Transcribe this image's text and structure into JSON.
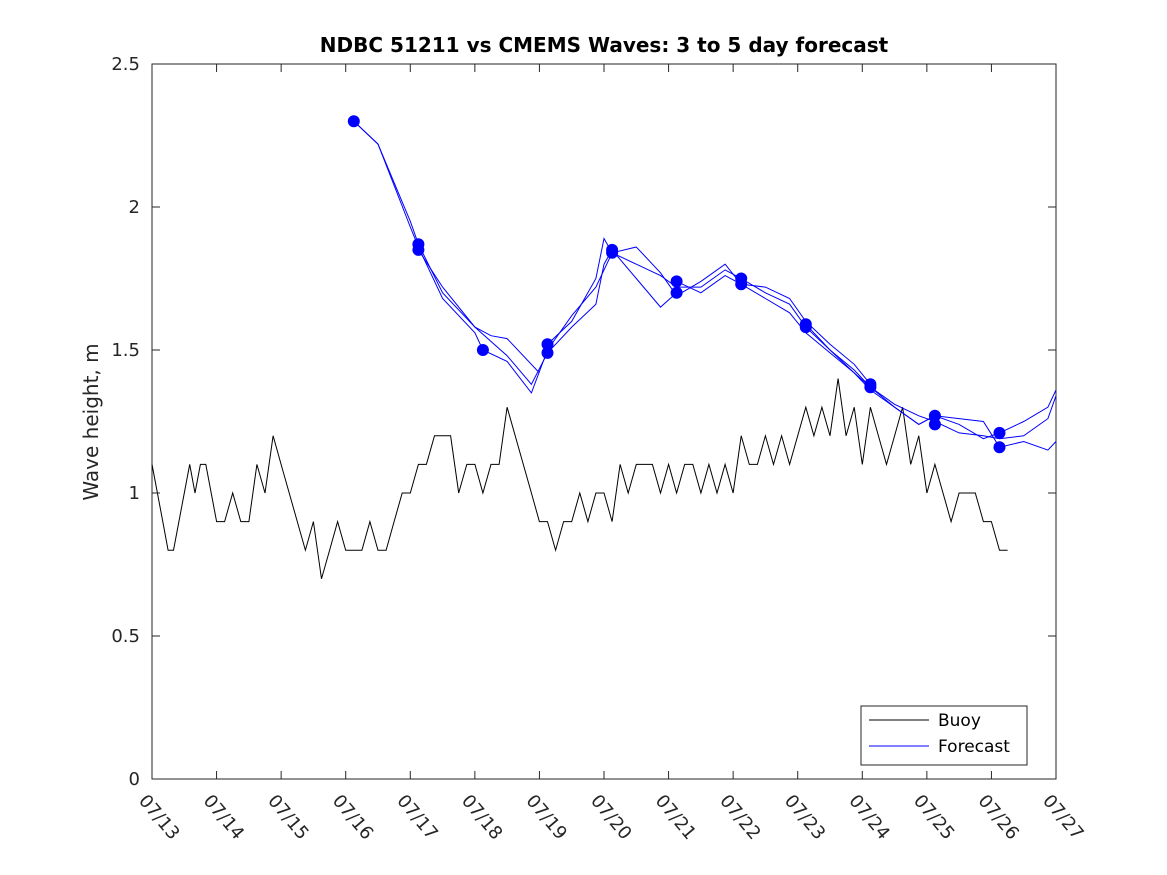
{
  "chart_data": {
    "type": "line",
    "title": "NDBC 51211 vs CMEMS Waves: 3 to 5 day forecast",
    "xlabel": "",
    "ylabel": "Wave height, m",
    "xlim": [
      "07/13",
      "07/27"
    ],
    "ylim": [
      0,
      2.5
    ],
    "grid": false,
    "legend_position": "bottom-right",
    "x_tick_labels": [
      "07/13",
      "07/14",
      "07/15",
      "07/16",
      "07/17",
      "07/18",
      "07/19",
      "07/20",
      "07/21",
      "07/22",
      "07/23",
      "07/24",
      "07/25",
      "07/26",
      "07/27"
    ],
    "y_tick_labels": [
      "0",
      "0.5",
      "1",
      "1.5",
      "2",
      "2.5"
    ],
    "y_ticks": [
      0,
      0.5,
      1,
      1.5,
      2,
      2.5
    ],
    "colors": {
      "buoy": "#000000",
      "forecast": "#0000ff"
    },
    "legend": [
      {
        "label": "Buoy",
        "color": "#000000"
      },
      {
        "label": "Forecast",
        "color": "#0000ff"
      }
    ],
    "series": [
      {
        "name": "Buoy",
        "color": "#000000",
        "x": [
          "07/13 00:00",
          "07/13 02:00",
          "07/13 04:00",
          "07/13 06:00",
          "07/13 08:00",
          "07/13 10:00",
          "07/13 12:00",
          "07/13 14:00",
          "07/13 16:00",
          "07/13 18:00",
          "07/13 20:00",
          "07/13 22:00",
          "07/14 00:00",
          "07/14 03:00",
          "07/14 06:00",
          "07/14 09:00",
          "07/14 12:00",
          "07/14 15:00",
          "07/14 18:00",
          "07/14 21:00",
          "07/15 00:00",
          "07/15 03:00",
          "07/15 06:00",
          "07/15 09:00",
          "07/15 12:00",
          "07/15 15:00",
          "07/15 18:00",
          "07/15 21:00",
          "07/16 00:00",
          "07/16 03:00",
          "07/16 06:00",
          "07/16 09:00",
          "07/16 12:00",
          "07/16 15:00",
          "07/16 18:00",
          "07/16 21:00",
          "07/17 00:00",
          "07/17 03:00",
          "07/17 06:00",
          "07/17 09:00",
          "07/17 12:00",
          "07/17 15:00",
          "07/17 18:00",
          "07/17 21:00",
          "07/18 00:00",
          "07/18 03:00",
          "07/18 06:00",
          "07/18 09:00",
          "07/18 12:00",
          "07/18 15:00",
          "07/18 18:00",
          "07/18 21:00",
          "07/19 00:00",
          "07/19 03:00",
          "07/19 06:00",
          "07/19 09:00",
          "07/19 12:00",
          "07/19 15:00",
          "07/19 18:00",
          "07/19 21:00",
          "07/20 00:00",
          "07/20 03:00",
          "07/20 06:00",
          "07/20 09:00",
          "07/20 12:00",
          "07/20 15:00",
          "07/20 18:00",
          "07/20 21:00",
          "07/21 00:00",
          "07/21 03:00",
          "07/21 06:00",
          "07/21 09:00",
          "07/21 12:00",
          "07/21 15:00",
          "07/21 18:00",
          "07/21 21:00",
          "07/22 00:00",
          "07/22 03:00",
          "07/22 06:00",
          "07/22 09:00",
          "07/22 12:00",
          "07/22 15:00",
          "07/22 18:00",
          "07/22 21:00",
          "07/23 00:00",
          "07/23 03:00",
          "07/23 06:00",
          "07/23 09:00",
          "07/23 12:00",
          "07/23 15:00",
          "07/23 18:00",
          "07/23 21:00",
          "07/24 00:00",
          "07/24 03:00",
          "07/24 06:00",
          "07/24 09:00",
          "07/24 12:00",
          "07/24 15:00",
          "07/24 18:00",
          "07/24 21:00",
          "07/25 00:00",
          "07/25 03:00",
          "07/25 06:00",
          "07/25 09:00",
          "07/25 12:00",
          "07/25 15:00",
          "07/25 18:00",
          "07/25 21:00",
          "07/26 00:00",
          "07/26 03:00",
          "07/26 06:00"
        ],
        "values": [
          1.1,
          1.0,
          0.9,
          0.8,
          0.8,
          0.9,
          1.0,
          1.1,
          1.0,
          1.1,
          1.1,
          1.0,
          0.9,
          0.9,
          1.0,
          0.9,
          0.9,
          1.1,
          1.0,
          1.2,
          1.1,
          1.0,
          0.9,
          0.8,
          0.9,
          0.7,
          0.8,
          0.9,
          0.8,
          0.8,
          0.8,
          0.9,
          0.8,
          0.8,
          0.9,
          1.0,
          1.0,
          1.1,
          1.1,
          1.2,
          1.2,
          1.2,
          1.0,
          1.1,
          1.1,
          1.0,
          1.1,
          1.1,
          1.3,
          1.2,
          1.1,
          1.0,
          0.9,
          0.9,
          0.8,
          0.9,
          0.9,
          1.0,
          0.9,
          1.0,
          1.0,
          0.9,
          1.1,
          1.0,
          1.1,
          1.1,
          1.1,
          1.0,
          1.1,
          1.0,
          1.1,
          1.1,
          1.0,
          1.1,
          1.0,
          1.1,
          1.0,
          1.2,
          1.1,
          1.1,
          1.2,
          1.1,
          1.2,
          1.1,
          1.2,
          1.3,
          1.2,
          1.3,
          1.2,
          1.4,
          1.2,
          1.3,
          1.1,
          1.3,
          1.2,
          1.1,
          1.2,
          1.3,
          1.1,
          1.2,
          1.0,
          1.1,
          1.0,
          0.9,
          1.0,
          1.0,
          1.0,
          0.9,
          0.9,
          0.8,
          0.8
        ]
      },
      {
        "name": "Forecast",
        "color": "#0000ff",
        "x": [
          "07/16 03:00",
          "07/16 12:00",
          "07/17 00:00",
          "07/17 03:00",
          "07/17 12:00",
          "07/18 00:00",
          "07/18 03:00",
          "07/18 12:00",
          "07/18 21:00",
          "07/19 03:00",
          "07/19 12:00",
          "07/19 21:00",
          "07/20 03:00",
          "07/20 12:00",
          "07/20 21:00",
          "07/21 03:00",
          "07/21 12:00",
          "07/21 21:00",
          "07/22 03:00",
          "07/22 12:00",
          "07/22 21:00",
          "07/23 03:00",
          "07/23 12:00",
          "07/23 21:00",
          "07/24 03:00",
          "07/24 12:00",
          "07/24 21:00",
          "07/25 03:00",
          "07/25 12:00",
          "07/25 21:00",
          "07/26 03:00",
          "07/26 12:00",
          "07/26 21:00",
          "07/27 00:00"
        ],
        "values": [
          2.3,
          2.22,
          1.93,
          1.86,
          1.68,
          1.56,
          1.5,
          1.46,
          1.35,
          1.5,
          1.62,
          1.72,
          1.84,
          1.8,
          1.76,
          1.72,
          1.72,
          1.78,
          1.75,
          1.7,
          1.66,
          1.58,
          1.5,
          1.43,
          1.37,
          1.31,
          1.27,
          1.25,
          1.21,
          1.2,
          1.19,
          1.2,
          1.26,
          1.34
        ]
      },
      {
        "name": "",
        "color": "#0000ff",
        "x": [
          "07/16 03:00",
          "07/16 12:00",
          "07/17 00:00",
          "07/17 03:00",
          "07/17 12:00",
          "07/18 00:00",
          "07/18 06:00",
          "07/18 12:00",
          "07/19 00:00"
        ],
        "values": [
          2.3,
          2.22,
          1.95,
          1.87,
          1.7,
          1.58,
          1.55,
          1.54,
          1.42
        ]
      },
      {
        "name": "",
        "color": "#0000ff",
        "x": [
          "07/17 03:00",
          "07/17 12:00",
          "07/18 00:00",
          "07/18 12:00",
          "07/18 21:00",
          "07/19 03:00",
          "07/19 12:00",
          "07/19 21:00",
          "07/20 00:00",
          "07/20 03:00",
          "07/20 12:00",
          "07/20 21:00",
          "07/21 03:00"
        ],
        "values": [
          1.85,
          1.72,
          1.58,
          1.48,
          1.38,
          1.49,
          1.58,
          1.66,
          1.8,
          1.85,
          1.75,
          1.65,
          1.7
        ]
      },
      {
        "name": "",
        "color": "#0000ff",
        "x": [
          "07/19 03:00",
          "07/19 12:00",
          "07/19 21:00",
          "07/20 00:00",
          "07/20 03:00",
          "07/20 12:00",
          "07/20 21:00",
          "07/21 03:00",
          "07/21 12:00",
          "07/21 21:00",
          "07/22 03:00",
          "07/22 12:00",
          "07/22 21:00",
          "07/23 03:00",
          "07/23 12:00",
          "07/23 21:00",
          "07/24 03:00"
        ],
        "values": [
          1.52,
          1.6,
          1.75,
          1.89,
          1.84,
          1.86,
          1.77,
          1.69,
          1.74,
          1.8,
          1.73,
          1.72,
          1.68,
          1.6,
          1.52,
          1.45,
          1.38
        ]
      },
      {
        "name": "",
        "color": "#0000ff",
        "x": [
          "07/21 03:00",
          "07/21 12:00",
          "07/21 21:00",
          "07/22 03:00",
          "07/22 12:00",
          "07/22 21:00",
          "07/23 03:00",
          "07/23 12:00",
          "07/23 21:00",
          "07/24 03:00",
          "07/24 12:00",
          "07/24 21:00",
          "07/25 03:00",
          "07/25 12:00",
          "07/25 21:00",
          "07/26 03:00",
          "07/26 12:00",
          "07/26 21:00",
          "07/27 00:00"
        ],
        "values": [
          1.74,
          1.7,
          1.76,
          1.73,
          1.68,
          1.63,
          1.56,
          1.49,
          1.42,
          1.36,
          1.3,
          1.24,
          1.27,
          1.26,
          1.25,
          1.16,
          1.18,
          1.15,
          1.18
        ]
      },
      {
        "name": "",
        "color": "#0000ff",
        "x": [
          "07/23 03:00",
          "07/23 12:00",
          "07/23 21:00",
          "07/24 03:00",
          "07/24 12:00",
          "07/24 21:00",
          "07/25 03:00",
          "07/25 12:00",
          "07/25 21:00",
          "07/26 03:00",
          "07/26 12:00",
          "07/26 21:00",
          "07/27 00:00"
        ],
        "values": [
          1.59,
          1.5,
          1.42,
          1.37,
          1.3,
          1.24,
          1.27,
          1.24,
          1.19,
          1.21,
          1.25,
          1.3,
          1.36
        ]
      }
    ],
    "markers": {
      "name": "Forecast start",
      "color": "#0000ff",
      "x": [
        "07/16 03:00",
        "07/17 03:00",
        "07/17 03:00",
        "07/18 03:00",
        "07/19 03:00",
        "07/19 03:00",
        "07/20 03:00",
        "07/20 03:00",
        "07/21 03:00",
        "07/21 03:00",
        "07/22 03:00",
        "07/22 03:00",
        "07/23 03:00",
        "07/23 03:00",
        "07/24 03:00",
        "07/24 03:00",
        "07/25 03:00",
        "07/25 03:00",
        "07/26 03:00",
        "07/26 03:00"
      ],
      "values": [
        2.3,
        1.87,
        1.85,
        1.5,
        1.52,
        1.49,
        1.85,
        1.84,
        1.74,
        1.7,
        1.75,
        1.73,
        1.59,
        1.58,
        1.38,
        1.37,
        1.27,
        1.24,
        1.21,
        1.16
      ]
    }
  }
}
